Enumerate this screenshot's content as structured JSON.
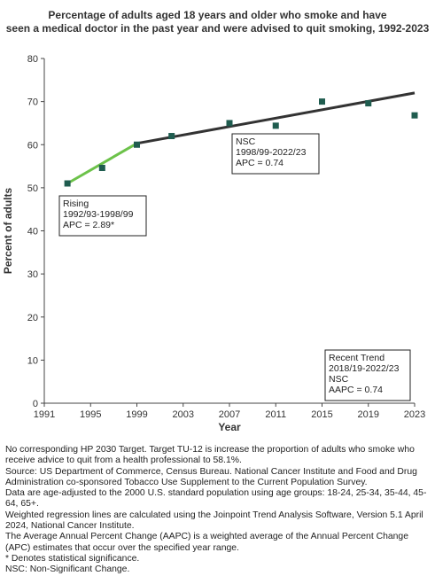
{
  "chart_data": {
    "type": "scatter",
    "title_lines": [
      "Percentage of  adults aged 18 years and older who smoke and have",
      "seen a medical doctor in the past year and were advised to quit smoking, 1992-2023"
    ],
    "xlabel": "Year",
    "ylabel": "Percent of adults",
    "xlim": [
      1991,
      2023
    ],
    "ylim": [
      0,
      80
    ],
    "x_ticks": [
      1991,
      1995,
      1999,
      2003,
      2007,
      2011,
      2015,
      2019,
      2023
    ],
    "y_ticks": [
      0,
      10,
      20,
      30,
      40,
      50,
      60,
      70,
      80
    ],
    "grid": false,
    "points": {
      "x": [
        1993,
        1996,
        1999,
        2002,
        2007,
        2011,
        2015,
        2019,
        2023
      ],
      "y": [
        51.0,
        54.6,
        60.0,
        62.0,
        65.0,
        64.4,
        70.0,
        69.6,
        66.8
      ]
    },
    "trend_segments": [
      {
        "x": [
          1993,
          1999
        ],
        "y": [
          51.0,
          60.3
        ],
        "color": "#6cc24a",
        "label": "Rising"
      },
      {
        "x": [
          1999,
          2023
        ],
        "y": [
          60.3,
          72.0
        ],
        "color": "#333333",
        "label": "NSC"
      }
    ],
    "annotations": [
      {
        "lines": [
          "Rising",
          "1992/93-1998/99",
          "APC =  2.89*"
        ]
      },
      {
        "lines": [
          "NSC",
          "1998/99-2022/23",
          "APC =  0.74"
        ]
      },
      {
        "lines": [
          "Recent Trend",
          "2018/19-2022/23",
          "NSC",
          "AAPC =  0.74"
        ]
      }
    ],
    "marker_color": "#1f5c4f"
  },
  "footnotes": [
    "No corresponding HP 2030 Target. Target TU-12 is increase the proportion of adults who smoke who receive advice to quit from a health professional to 58.1%.",
    "Source: US Department of Commerce, Census Bureau. National Cancer Institute and Food and Drug Administration co-sponsored Tobacco Use Supplement to the Current Population Survey.",
    "Data are age-adjusted to the 2000 U.S. standard population using age groups: 18-24, 25-34, 35-44, 45-64, 65+.",
    "Weighted regression lines are calculated using the Joinpoint Trend Analysis Software, Version 5.1 April 2024, National Cancer Institute.",
    "The Average Annual Percent Change (AAPC) is a weighted average of the Annual Percent Change (APC) estimates that occur over the specified year range.",
    "* Denotes statistical significance.",
    "NSC: Non-Significant Change."
  ]
}
